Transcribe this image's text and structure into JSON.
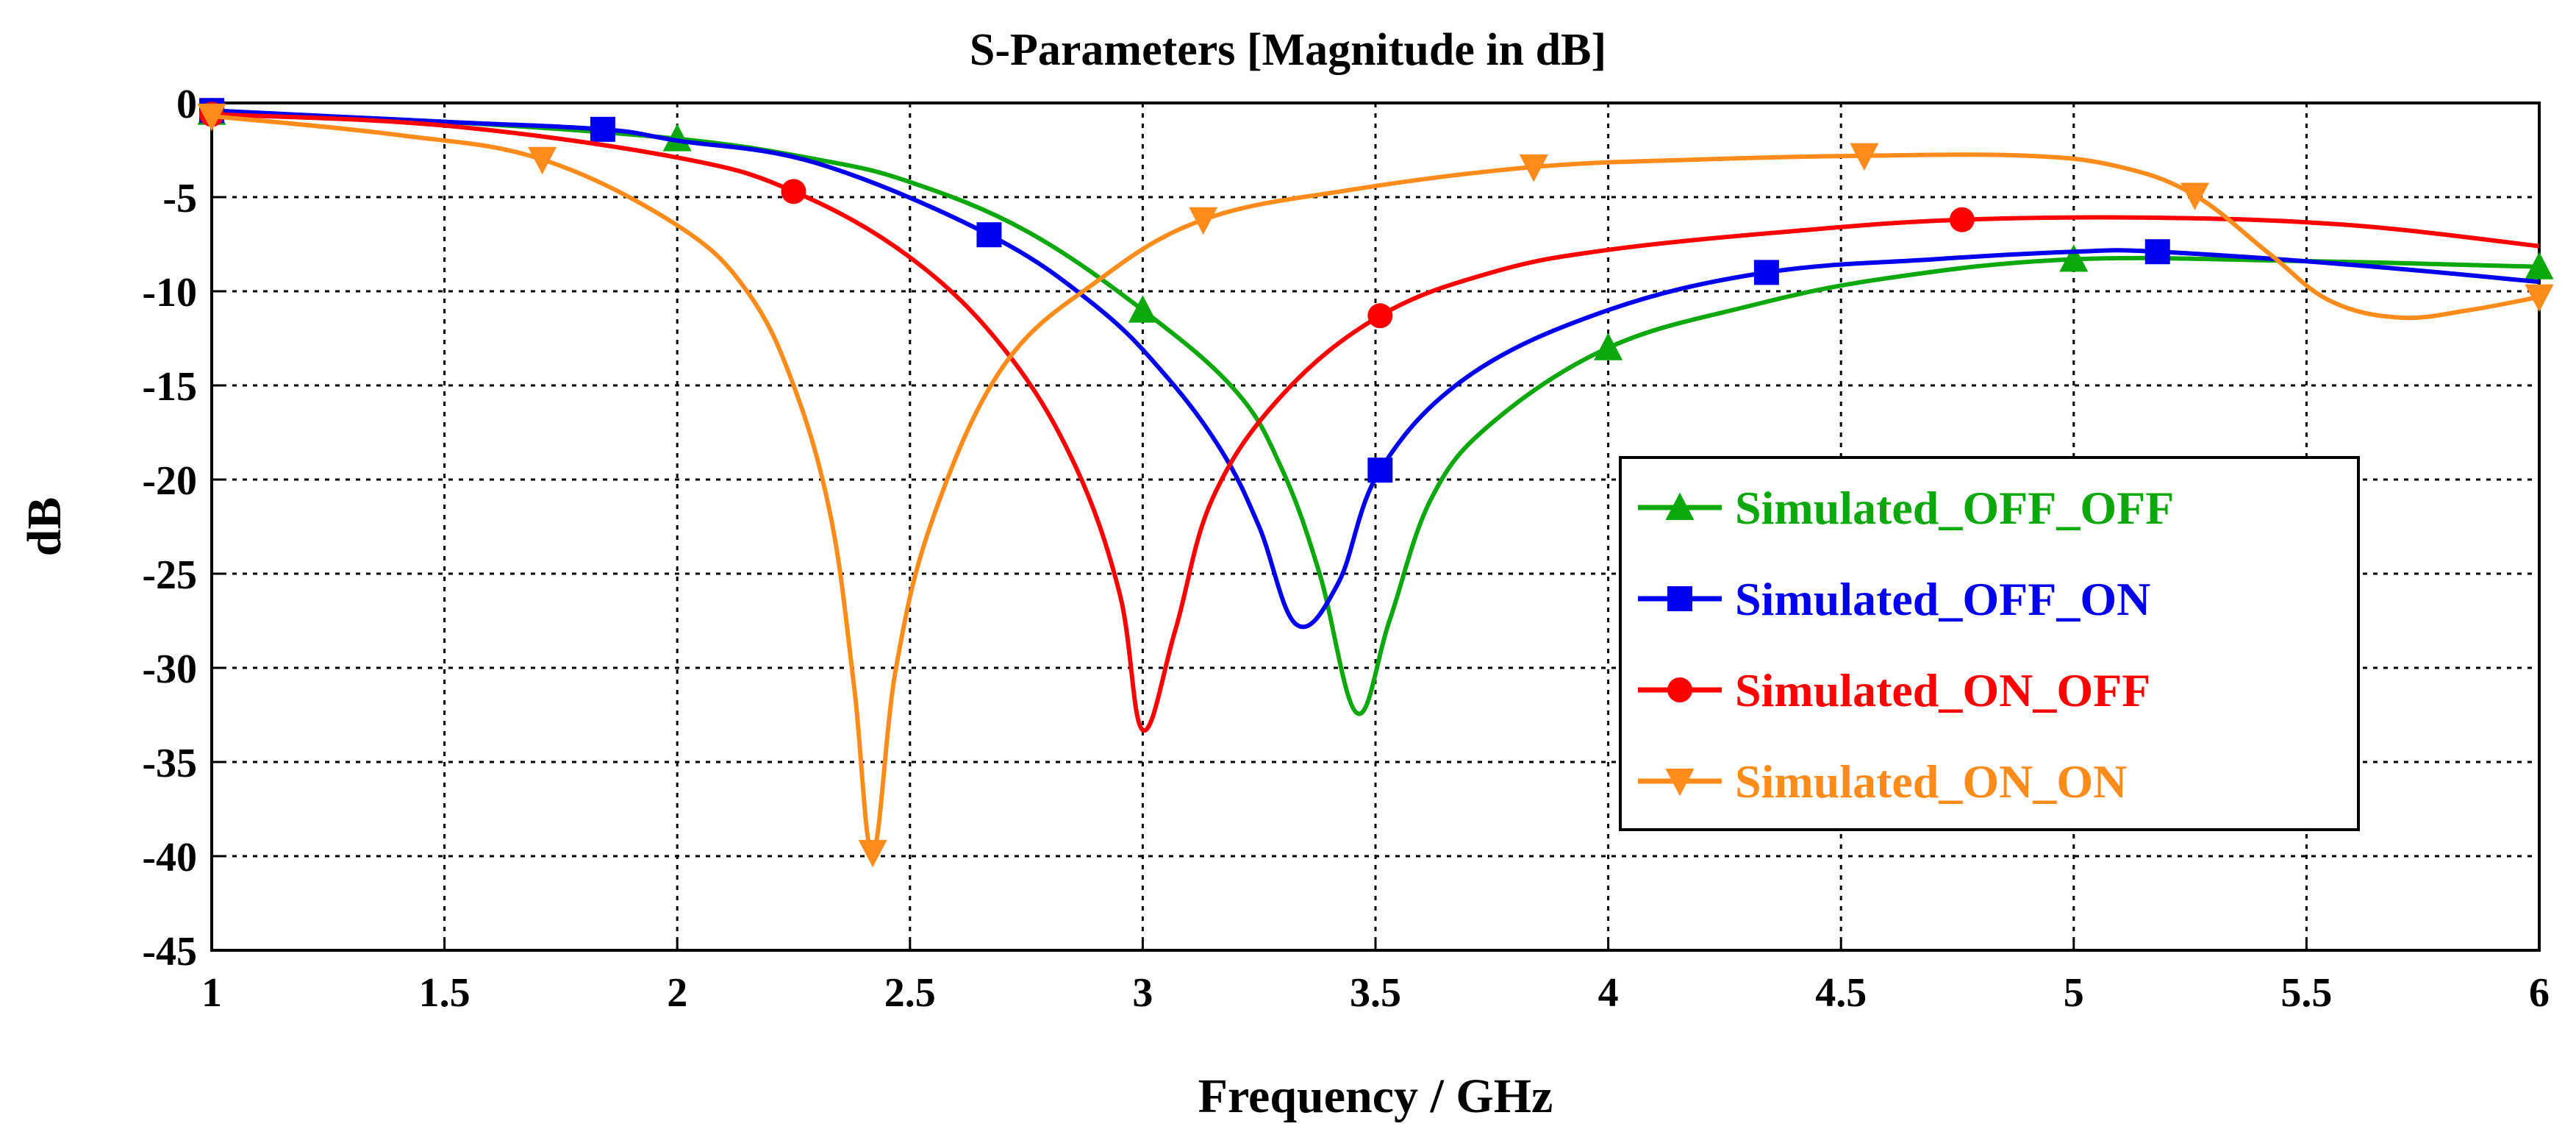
{
  "chart_data": {
    "type": "line",
    "title": "S-Parameters [Magnitude in dB]",
    "xlabel": "Frequency / GHz",
    "ylabel": "dB",
    "xlim": [
      1,
      6
    ],
    "ylim": [
      -45,
      0
    ],
    "xticks": [
      1,
      1.5,
      2,
      2.5,
      3,
      3.5,
      4,
      4.5,
      5,
      5.5,
      6
    ],
    "xtick_labels": [
      "1",
      "1.5",
      "2",
      "2.5",
      "3",
      "3.5",
      "4",
      "4.5",
      "5",
      "5.5",
      "6"
    ],
    "yticks": [
      0,
      -5,
      -10,
      -15,
      -20,
      -25,
      -30,
      -35,
      -40,
      -45
    ],
    "ytick_labels": [
      "0",
      "-5",
      "-10",
      "-15",
      "-20",
      "-25",
      "-30",
      "-35",
      "-40",
      "-45"
    ],
    "grid": true,
    "legend_position": "center-right",
    "series": [
      {
        "name": "Simulated_OFF_OFF",
        "color": "#0aa80a",
        "marker": "triangle-up",
        "points": [
          [
            1,
            -0.5
          ],
          [
            1.5,
            -1.0
          ],
          [
            2,
            -1.9
          ],
          [
            2.3,
            -3.0
          ],
          [
            2.5,
            -4.2
          ],
          [
            2.75,
            -6.8
          ],
          [
            3,
            -11.0
          ],
          [
            3.2,
            -15.3
          ],
          [
            3.3,
            -19.5
          ],
          [
            3.38,
            -25.0
          ],
          [
            3.46,
            -32.4
          ],
          [
            3.53,
            -27.5
          ],
          [
            3.62,
            -21.0
          ],
          [
            3.75,
            -17.0
          ],
          [
            4,
            -13.0
          ],
          [
            4.3,
            -10.8
          ],
          [
            4.6,
            -9.3
          ],
          [
            5,
            -8.3
          ],
          [
            5.5,
            -8.4
          ],
          [
            6,
            -8.7
          ]
        ],
        "markers_x": [
          1,
          2,
          3,
          4,
          5,
          6
        ]
      },
      {
        "name": "Simulated_OFF_ON",
        "color": "#0000ee",
        "marker": "square",
        "points": [
          [
            1,
            -0.4
          ],
          [
            1.5,
            -1.0
          ],
          [
            1.84,
            -1.4
          ],
          [
            2,
            -2.0
          ],
          [
            2.3,
            -3.2
          ],
          [
            2.67,
            -7.0
          ],
          [
            2.9,
            -10.8
          ],
          [
            3.05,
            -14.5
          ],
          [
            3.17,
            -18.5
          ],
          [
            3.25,
            -22.5
          ],
          [
            3.33,
            -27.7
          ],
          [
            3.42,
            -25.5
          ],
          [
            3.51,
            -19.5
          ],
          [
            3.7,
            -14.5
          ],
          [
            4,
            -11.0
          ],
          [
            4.34,
            -9.0
          ],
          [
            4.7,
            -8.3
          ],
          [
            5,
            -7.9
          ],
          [
            5.18,
            -7.9
          ],
          [
            5.6,
            -8.6
          ],
          [
            6,
            -9.5
          ]
        ],
        "markers_x": [
          1,
          1.84,
          2.67,
          3.51,
          4.34,
          5.18
        ]
      },
      {
        "name": "Simulated_ON_OFF",
        "color": "#ff0000",
        "marker": "circle",
        "points": [
          [
            1,
            -0.6
          ],
          [
            1.5,
            -1.2
          ],
          [
            2,
            -2.9
          ],
          [
            2.25,
            -4.7
          ],
          [
            2.5,
            -8.2
          ],
          [
            2.7,
            -13.0
          ],
          [
            2.85,
            -19.0
          ],
          [
            2.95,
            -26.0
          ],
          [
            3.0,
            -33.3
          ],
          [
            3.07,
            -28.0
          ],
          [
            3.15,
            -21.0
          ],
          [
            3.3,
            -15.5
          ],
          [
            3.51,
            -11.3
          ],
          [
            3.75,
            -9.0
          ],
          [
            4,
            -7.8
          ],
          [
            4.4,
            -6.8
          ],
          [
            4.76,
            -6.2
          ],
          [
            5.2,
            -6.1
          ],
          [
            5.6,
            -6.5
          ],
          [
            6,
            -7.6
          ]
        ],
        "markers_x": [
          1,
          2.25,
          3.51,
          4.76
        ]
      },
      {
        "name": "Simulated_ON_ON",
        "color": "#ff8c1a",
        "marker": "triangle-down",
        "points": [
          [
            1,
            -0.7
          ],
          [
            1.4,
            -1.7
          ],
          [
            1.71,
            -3.0
          ],
          [
            2,
            -6.5
          ],
          [
            2.15,
            -10.0
          ],
          [
            2.25,
            -15.0
          ],
          [
            2.33,
            -22.0
          ],
          [
            2.38,
            -31.0
          ],
          [
            2.42,
            -39.8
          ],
          [
            2.47,
            -30.0
          ],
          [
            2.55,
            -22.0
          ],
          [
            2.7,
            -14.0
          ],
          [
            2.9,
            -9.5
          ],
          [
            3.13,
            -6.2
          ],
          [
            3.45,
            -4.6
          ],
          [
            3.84,
            -3.4
          ],
          [
            4.2,
            -3.0
          ],
          [
            4.55,
            -2.8
          ],
          [
            4.9,
            -2.8
          ],
          [
            5.1,
            -3.4
          ],
          [
            5.26,
            -4.9
          ],
          [
            5.42,
            -8.0
          ],
          [
            5.55,
            -10.5
          ],
          [
            5.7,
            -11.4
          ],
          [
            5.85,
            -11.0
          ],
          [
            6,
            -10.3
          ]
        ],
        "markers_x": [
          1,
          1.71,
          2.42,
          3.13,
          3.84,
          4.55,
          5.26,
          6
        ]
      }
    ]
  }
}
